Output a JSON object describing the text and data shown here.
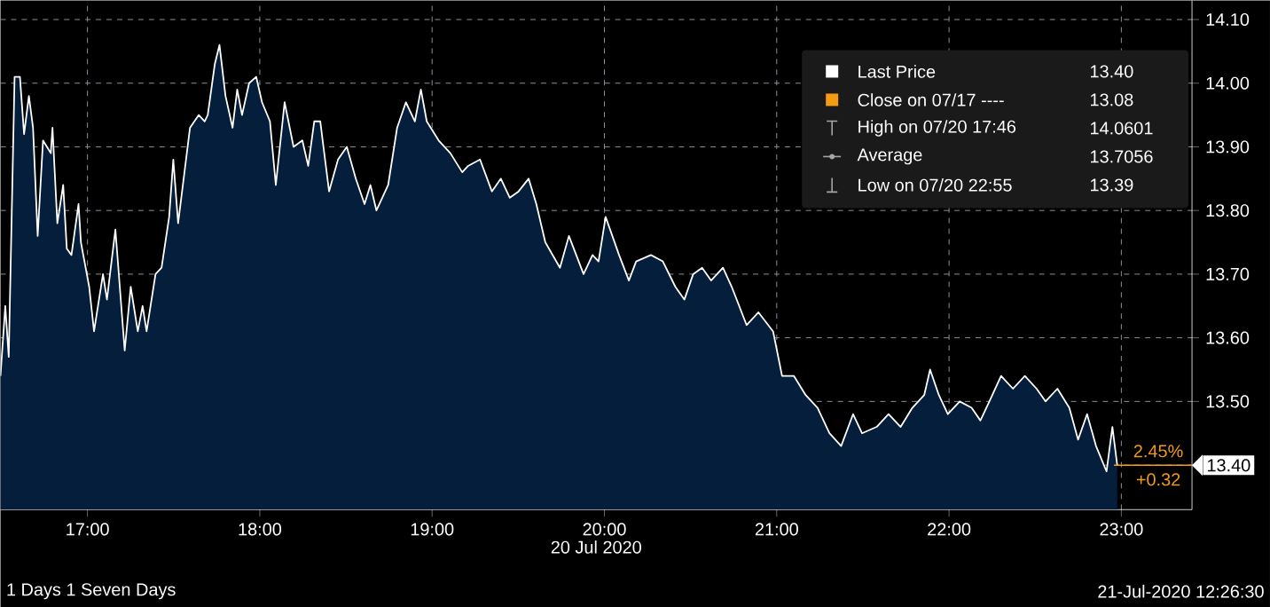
{
  "chart_data": {
    "type": "area",
    "xlabel": "20 Jul 2020",
    "x": [
      16.495,
      16.523,
      16.543,
      16.577,
      16.608,
      16.632,
      16.66,
      16.684,
      16.711,
      16.742,
      16.787,
      16.797,
      16.825,
      16.859,
      16.88,
      16.907,
      16.948,
      16.962,
      17.01,
      17.038,
      17.09,
      17.113,
      17.162,
      17.216,
      17.251,
      17.292,
      17.32,
      17.343,
      17.395,
      17.43,
      17.474,
      17.498,
      17.526,
      17.549,
      17.595,
      17.646,
      17.68,
      17.698,
      17.739,
      17.766,
      17.801,
      17.842,
      17.869,
      17.897,
      17.938,
      17.979,
      18.013,
      18.059,
      18.093,
      18.144,
      18.196,
      18.247,
      18.281,
      18.316,
      18.351,
      18.402,
      18.454,
      18.505,
      18.557,
      18.608,
      18.642,
      18.677,
      18.745,
      18.797,
      18.848,
      18.9,
      18.935,
      18.969,
      19.038,
      19.106,
      19.175,
      19.209,
      19.278,
      19.347,
      19.399,
      19.451,
      19.502,
      19.56,
      19.605,
      19.657,
      19.742,
      19.794,
      19.879,
      19.931,
      19.966,
      20.007,
      20.085,
      20.142,
      20.184,
      20.27,
      20.339,
      20.412,
      20.464,
      20.515,
      20.567,
      20.619,
      20.688,
      20.739,
      20.825,
      20.894,
      20.979,
      21.031,
      21.1,
      21.168,
      21.237,
      21.306,
      21.374,
      21.443,
      21.495,
      21.58,
      21.649,
      21.719,
      21.787,
      21.856,
      21.89,
      21.941,
      21.993,
      22.062,
      22.131,
      22.182,
      22.234,
      22.302,
      22.371,
      22.44,
      22.508,
      22.56,
      22.629,
      22.698,
      22.749,
      22.801,
      22.853,
      22.914,
      22.948,
      22.976
    ],
    "series": [
      {
        "name": "Last Price",
        "color": "#ffffff",
        "values": [
          13.54,
          13.65,
          13.57,
          14.01,
          14.01,
          13.92,
          13.98,
          13.93,
          13.76,
          13.91,
          13.89,
          13.93,
          13.78,
          13.84,
          13.74,
          13.73,
          13.81,
          13.75,
          13.68,
          13.61,
          13.7,
          13.66,
          13.77,
          13.58,
          13.68,
          13.61,
          13.65,
          13.61,
          13.7,
          13.71,
          13.79,
          13.88,
          13.78,
          13.83,
          13.93,
          13.95,
          13.94,
          13.95,
          14.03,
          14.06,
          13.98,
          13.93,
          13.99,
          13.95,
          14.0,
          14.01,
          13.97,
          13.94,
          13.84,
          13.97,
          13.9,
          13.91,
          13.87,
          13.94,
          13.94,
          13.83,
          13.88,
          13.9,
          13.85,
          13.81,
          13.84,
          13.8,
          13.84,
          13.93,
          13.97,
          13.94,
          13.99,
          13.94,
          13.91,
          13.89,
          13.86,
          13.87,
          13.88,
          13.83,
          13.85,
          13.82,
          13.83,
          13.85,
          13.81,
          13.75,
          13.71,
          13.76,
          13.7,
          13.73,
          13.72,
          13.79,
          13.73,
          13.69,
          13.72,
          13.73,
          13.72,
          13.68,
          13.66,
          13.7,
          13.71,
          13.69,
          13.71,
          13.68,
          13.62,
          13.64,
          13.61,
          13.54,
          13.54,
          13.51,
          13.49,
          13.45,
          13.43,
          13.48,
          13.45,
          13.46,
          13.48,
          13.46,
          13.49,
          13.51,
          13.55,
          13.51,
          13.48,
          13.5,
          13.49,
          13.47,
          13.5,
          13.54,
          13.52,
          13.54,
          13.52,
          13.5,
          13.52,
          13.49,
          13.44,
          13.48,
          13.43,
          13.39,
          13.46,
          13.4
        ]
      }
    ],
    "xlim": [
      16.495,
      23.41
    ],
    "ylim": [
      13.33,
      14.13
    ],
    "xticks": [
      {
        "value": 17,
        "label": "17:00"
      },
      {
        "value": 18,
        "label": "18:00"
      },
      {
        "value": 19,
        "label": "19:00"
      },
      {
        "value": 20,
        "label": "20:00"
      },
      {
        "value": 21,
        "label": "21:00"
      },
      {
        "value": 22,
        "label": "22:00"
      },
      {
        "value": 23,
        "label": "23:00"
      }
    ],
    "yticks": [
      {
        "value": 13.4,
        "label": null
      },
      {
        "value": 13.5,
        "label": "13.50"
      },
      {
        "value": 13.6,
        "label": "13.60"
      },
      {
        "value": 13.7,
        "label": "13.70"
      },
      {
        "value": 13.8,
        "label": "13.80"
      },
      {
        "value": 13.9,
        "label": "13.90"
      },
      {
        "value": 14.0,
        "label": "14.00"
      },
      {
        "value": 14.1,
        "label": "14.10"
      }
    ],
    "grid": true,
    "legend": "top right",
    "annotations": [
      "13.40",
      "Close on 07/17 ----",
      "13.08",
      "High on 07/20 17:46",
      "14.0601",
      "Average",
      "13.7056",
      "Low on 07/20 22:55",
      "13.39",
      "2.45%",
      "+0.32",
      "13.40",
      "1 Days 1 Seven Days",
      "21-Jul-2020 12:26:30"
    ]
  }
}
